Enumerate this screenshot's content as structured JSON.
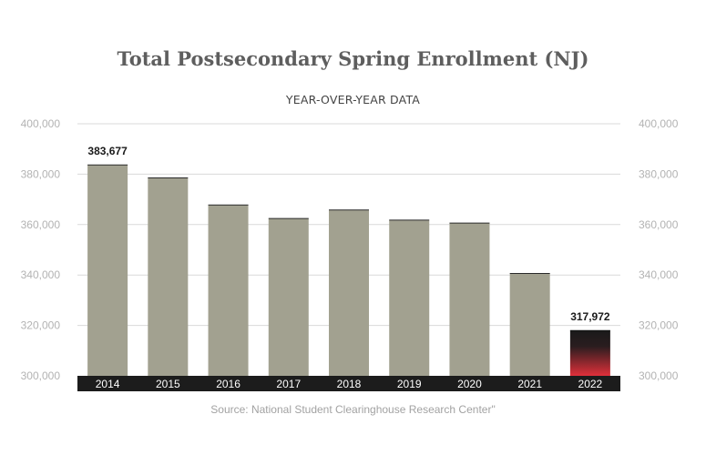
{
  "title": "Total Postsecondary Spring Enrollment (NJ)",
  "subtitle": "YEAR-OVER-YEAR DATA",
  "source": "Source: National Student Clearinghouse Research Center\"",
  "colors": {
    "bar": "#a2a190",
    "highlight_top": "#1a1a1a",
    "highlight_bottom": "#e0303a",
    "axis_band": "#1c1c1c",
    "grid": "#d9d9d9"
  },
  "chart_data": {
    "type": "bar",
    "categories": [
      "2014",
      "2015",
      "2016",
      "2017",
      "2018",
      "2019",
      "2020",
      "2021",
      "2022"
    ],
    "values": [
      383677,
      378500,
      367800,
      362400,
      365800,
      361800,
      360600,
      340600,
      317972
    ],
    "ylim": [
      300000,
      400000
    ],
    "yticks": [
      "400,000",
      "380,000",
      "360,000",
      "340,000",
      "320,000",
      "300,000"
    ],
    "ytick_values": [
      400000,
      380000,
      360000,
      340000,
      320000,
      300000
    ],
    "data_labels": {
      "0": "383,677",
      "8": "317,972"
    },
    "highlight_index": 8,
    "grid": true,
    "secondary_y_axis": true
  }
}
